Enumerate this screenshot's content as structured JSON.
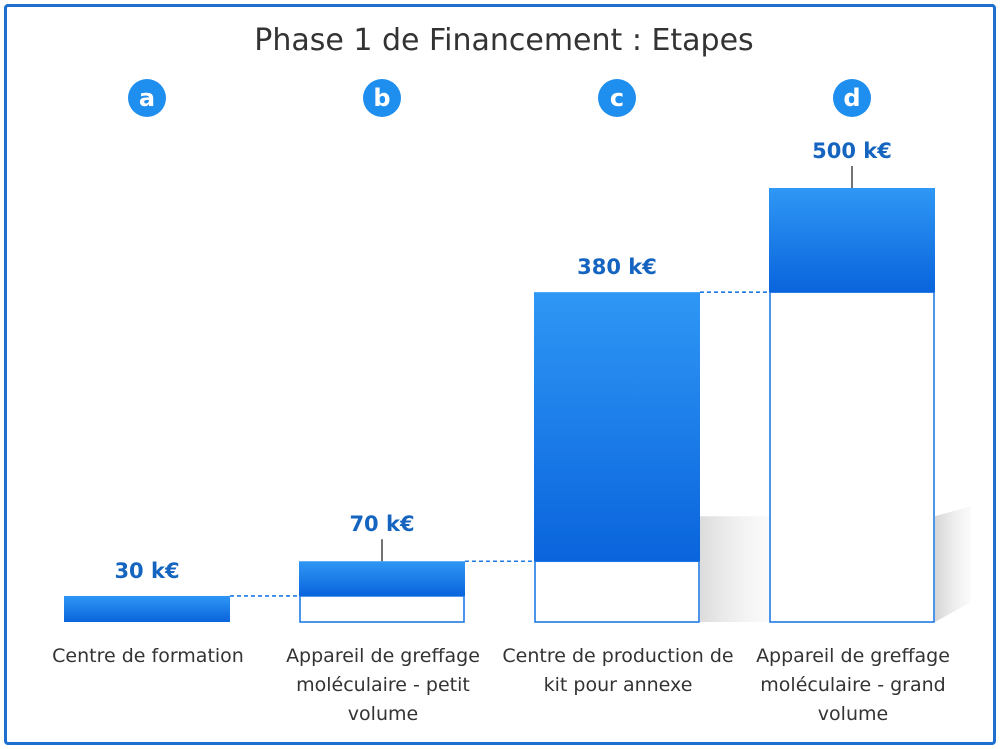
{
  "chart_data": {
    "type": "bar",
    "subtype": "waterfall",
    "title": "Phase 1 de Financement : Etapes",
    "steps": [
      "a",
      "b",
      "c",
      "d"
    ],
    "categories": [
      [
        "Centre de formation"
      ],
      [
        "Appareil de greffage",
        "moléculaire - petit",
        "volume"
      ],
      [
        "Centre de production de",
        "kit pour annexe"
      ],
      [
        "Appareil de greffage",
        "moléculaire - grand",
        "volume"
      ]
    ],
    "values": [
      30,
      70,
      380,
      500
    ],
    "value_labels": [
      "30 k€",
      "70 k€",
      "380 k€",
      "500 k€"
    ],
    "unit": "k€",
    "grid": false,
    "legend": "none"
  },
  "colors": {
    "bar_top": "#2f97f5",
    "bar_bottom": "#0a64dc",
    "outline": "#1f7be6",
    "badge": "#1e8eef",
    "label": "#1565c0",
    "border": "#1f6fd1"
  }
}
